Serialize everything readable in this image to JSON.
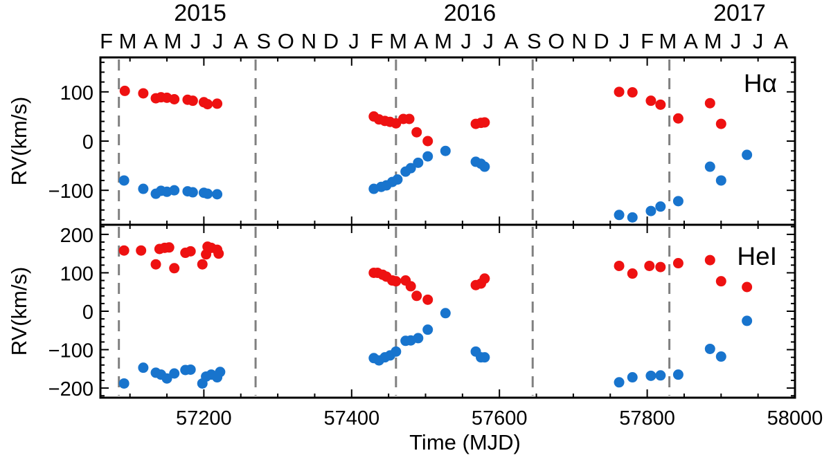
{
  "chart_data": {
    "type": "scatter",
    "xlabel": "Time (MJD)",
    "xlim": [
      57060,
      58000
    ],
    "x_ticks": [
      57200,
      57400,
      57600,
      57800,
      58000
    ],
    "top_axis": {
      "years": [
        {
          "label": "2015",
          "mjd": 57195
        },
        {
          "label": "2016",
          "mjd": 57560
        },
        {
          "label": "2017",
          "mjd": 57925
        }
      ],
      "months": [
        {
          "label": "F",
          "mjd": 57068
        },
        {
          "label": "M",
          "mjd": 57097
        },
        {
          "label": "A",
          "mjd": 57128
        },
        {
          "label": "M",
          "mjd": 57158
        },
        {
          "label": "J",
          "mjd": 57189
        },
        {
          "label": "J",
          "mjd": 57219
        },
        {
          "label": "A",
          "mjd": 57250
        },
        {
          "label": "S",
          "mjd": 57281
        },
        {
          "label": "O",
          "mjd": 57311
        },
        {
          "label": "N",
          "mjd": 57342
        },
        {
          "label": "D",
          "mjd": 57372
        },
        {
          "label": "J",
          "mjd": 57403
        },
        {
          "label": "F",
          "mjd": 57434
        },
        {
          "label": "M",
          "mjd": 57463
        },
        {
          "label": "A",
          "mjd": 57494
        },
        {
          "label": "M",
          "mjd": 57524
        },
        {
          "label": "J",
          "mjd": 57555
        },
        {
          "label": "J",
          "mjd": 57585
        },
        {
          "label": "A",
          "mjd": 57616
        },
        {
          "label": "S",
          "mjd": 57647
        },
        {
          "label": "O",
          "mjd": 57677
        },
        {
          "label": "N",
          "mjd": 57708
        },
        {
          "label": "D",
          "mjd": 57738
        },
        {
          "label": "J",
          "mjd": 57769
        },
        {
          "label": "F",
          "mjd": 57800
        },
        {
          "label": "M",
          "mjd": 57828
        },
        {
          "label": "A",
          "mjd": 57859
        },
        {
          "label": "M",
          "mjd": 57889
        },
        {
          "label": "J",
          "mjd": 57920
        },
        {
          "label": "J",
          "mjd": 57950
        },
        {
          "label": "A",
          "mjd": 57981
        }
      ]
    },
    "vlines": [
      57085,
      57270,
      57460,
      57645,
      57830
    ],
    "colors": {
      "red": "#ee1111",
      "blue": "#1874cd",
      "vline": "#808080"
    },
    "panels": [
      {
        "label": "Hα",
        "ylabel": "RV(km/s)",
        "ylim": [
          -170,
          170
        ],
        "yticks": [
          100,
          0,
          -100
        ],
        "series": [
          {
            "color": "#ee1111",
            "points": [
              [
                57093,
                102
              ],
              [
                57118,
                97
              ],
              [
                57135,
                87
              ],
              [
                57142,
                89
              ],
              [
                57150,
                88
              ],
              [
                57160,
                85
              ],
              [
                57178,
                84
              ],
              [
                57185,
                82
              ],
              [
                57200,
                79
              ],
              [
                57205,
                75
              ],
              [
                57218,
                76
              ],
              [
                57430,
                50
              ],
              [
                57437,
                44
              ],
              [
                57445,
                41
              ],
              [
                57452,
                39
              ],
              [
                57460,
                36
              ],
              [
                57470,
                45
              ],
              [
                57478,
                45
              ],
              [
                57488,
                18
              ],
              [
                57503,
                0
              ],
              [
                57568,
                35
              ],
              [
                57575,
                37
              ],
              [
                57580,
                38
              ],
              [
                57762,
                100
              ],
              [
                57780,
                99
              ],
              [
                57805,
                82
              ],
              [
                57818,
                74
              ],
              [
                57842,
                46
              ],
              [
                57885,
                77
              ],
              [
                57900,
                35
              ]
            ]
          },
          {
            "color": "#1874cd",
            "points": [
              [
                57092,
                -80
              ],
              [
                57118,
                -97
              ],
              [
                57135,
                -107
              ],
              [
                57142,
                -101
              ],
              [
                57150,
                -103
              ],
              [
                57160,
                -100
              ],
              [
                57178,
                -102
              ],
              [
                57185,
                -104
              ],
              [
                57200,
                -105
              ],
              [
                57205,
                -107
              ],
              [
                57218,
                -108
              ],
              [
                57430,
                -97
              ],
              [
                57440,
                -93
              ],
              [
                57447,
                -90
              ],
              [
                57455,
                -83
              ],
              [
                57462,
                -78
              ],
              [
                57473,
                -62
              ],
              [
                57480,
                -55
              ],
              [
                57490,
                -44
              ],
              [
                57503,
                -31
              ],
              [
                57527,
                -20
              ],
              [
                57568,
                -42
              ],
              [
                57575,
                -46
              ],
              [
                57580,
                -52
              ],
              [
                57762,
                -150
              ],
              [
                57780,
                -155
              ],
              [
                57805,
                -142
              ],
              [
                57818,
                -133
              ],
              [
                57842,
                -122
              ],
              [
                57885,
                -52
              ],
              [
                57900,
                -80
              ],
              [
                57935,
                -28
              ]
            ]
          }
        ]
      },
      {
        "label": "HeI",
        "ylabel": "RV(km/s)",
        "ylim": [
          -225,
          225
        ],
        "yticks": [
          200,
          100,
          0,
          -100,
          -200
        ],
        "series": [
          {
            "color": "#ee1111",
            "points": [
              [
                57092,
                158
              ],
              [
                57115,
                158
              ],
              [
                57135,
                122
              ],
              [
                57140,
                162
              ],
              [
                57147,
                165
              ],
              [
                57153,
                166
              ],
              [
                57160,
                112
              ],
              [
                57175,
                152
              ],
              [
                57182,
                156
              ],
              [
                57198,
                122
              ],
              [
                57203,
                148
              ],
              [
                57205,
                168
              ],
              [
                57210,
                165
              ],
              [
                57218,
                160
              ],
              [
                57220,
                150
              ],
              [
                57430,
                100
              ],
              [
                57435,
                100
              ],
              [
                57442,
                95
              ],
              [
                57447,
                90
              ],
              [
                57455,
                80
              ],
              [
                57460,
                78
              ],
              [
                57473,
                80
              ],
              [
                57480,
                65
              ],
              [
                57488,
                40
              ],
              [
                57503,
                30
              ],
              [
                57568,
                68
              ],
              [
                57575,
                72
              ],
              [
                57580,
                85
              ],
              [
                57762,
                118
              ],
              [
                57780,
                98
              ],
              [
                57803,
                118
              ],
              [
                57818,
                115
              ],
              [
                57842,
                125
              ],
              [
                57885,
                133
              ],
              [
                57900,
                78
              ],
              [
                57935,
                63
              ]
            ]
          },
          {
            "color": "#1874cd",
            "points": [
              [
                57092,
                -188
              ],
              [
                57118,
                -147
              ],
              [
                57135,
                -160
              ],
              [
                57142,
                -165
              ],
              [
                57150,
                -175
              ],
              [
                57160,
                -162
              ],
              [
                57175,
                -153
              ],
              [
                57182,
                -152
              ],
              [
                57198,
                -188
              ],
              [
                57203,
                -170
              ],
              [
                57210,
                -165
              ],
              [
                57218,
                -172
              ],
              [
                57222,
                -158
              ],
              [
                57430,
                -122
              ],
              [
                57437,
                -128
              ],
              [
                57445,
                -120
              ],
              [
                57452,
                -115
              ],
              [
                57460,
                -105
              ],
              [
                57473,
                -77
              ],
              [
                57480,
                -76
              ],
              [
                57490,
                -70
              ],
              [
                57503,
                -48
              ],
              [
                57527,
                -5
              ],
              [
                57568,
                -105
              ],
              [
                57575,
                -120
              ],
              [
                57580,
                -120
              ],
              [
                57762,
                -185
              ],
              [
                57780,
                -172
              ],
              [
                57805,
                -168
              ],
              [
                57818,
                -167
              ],
              [
                57842,
                -165
              ],
              [
                57885,
                -98
              ],
              [
                57900,
                -118
              ],
              [
                57935,
                -25
              ]
            ]
          }
        ]
      }
    ]
  }
}
